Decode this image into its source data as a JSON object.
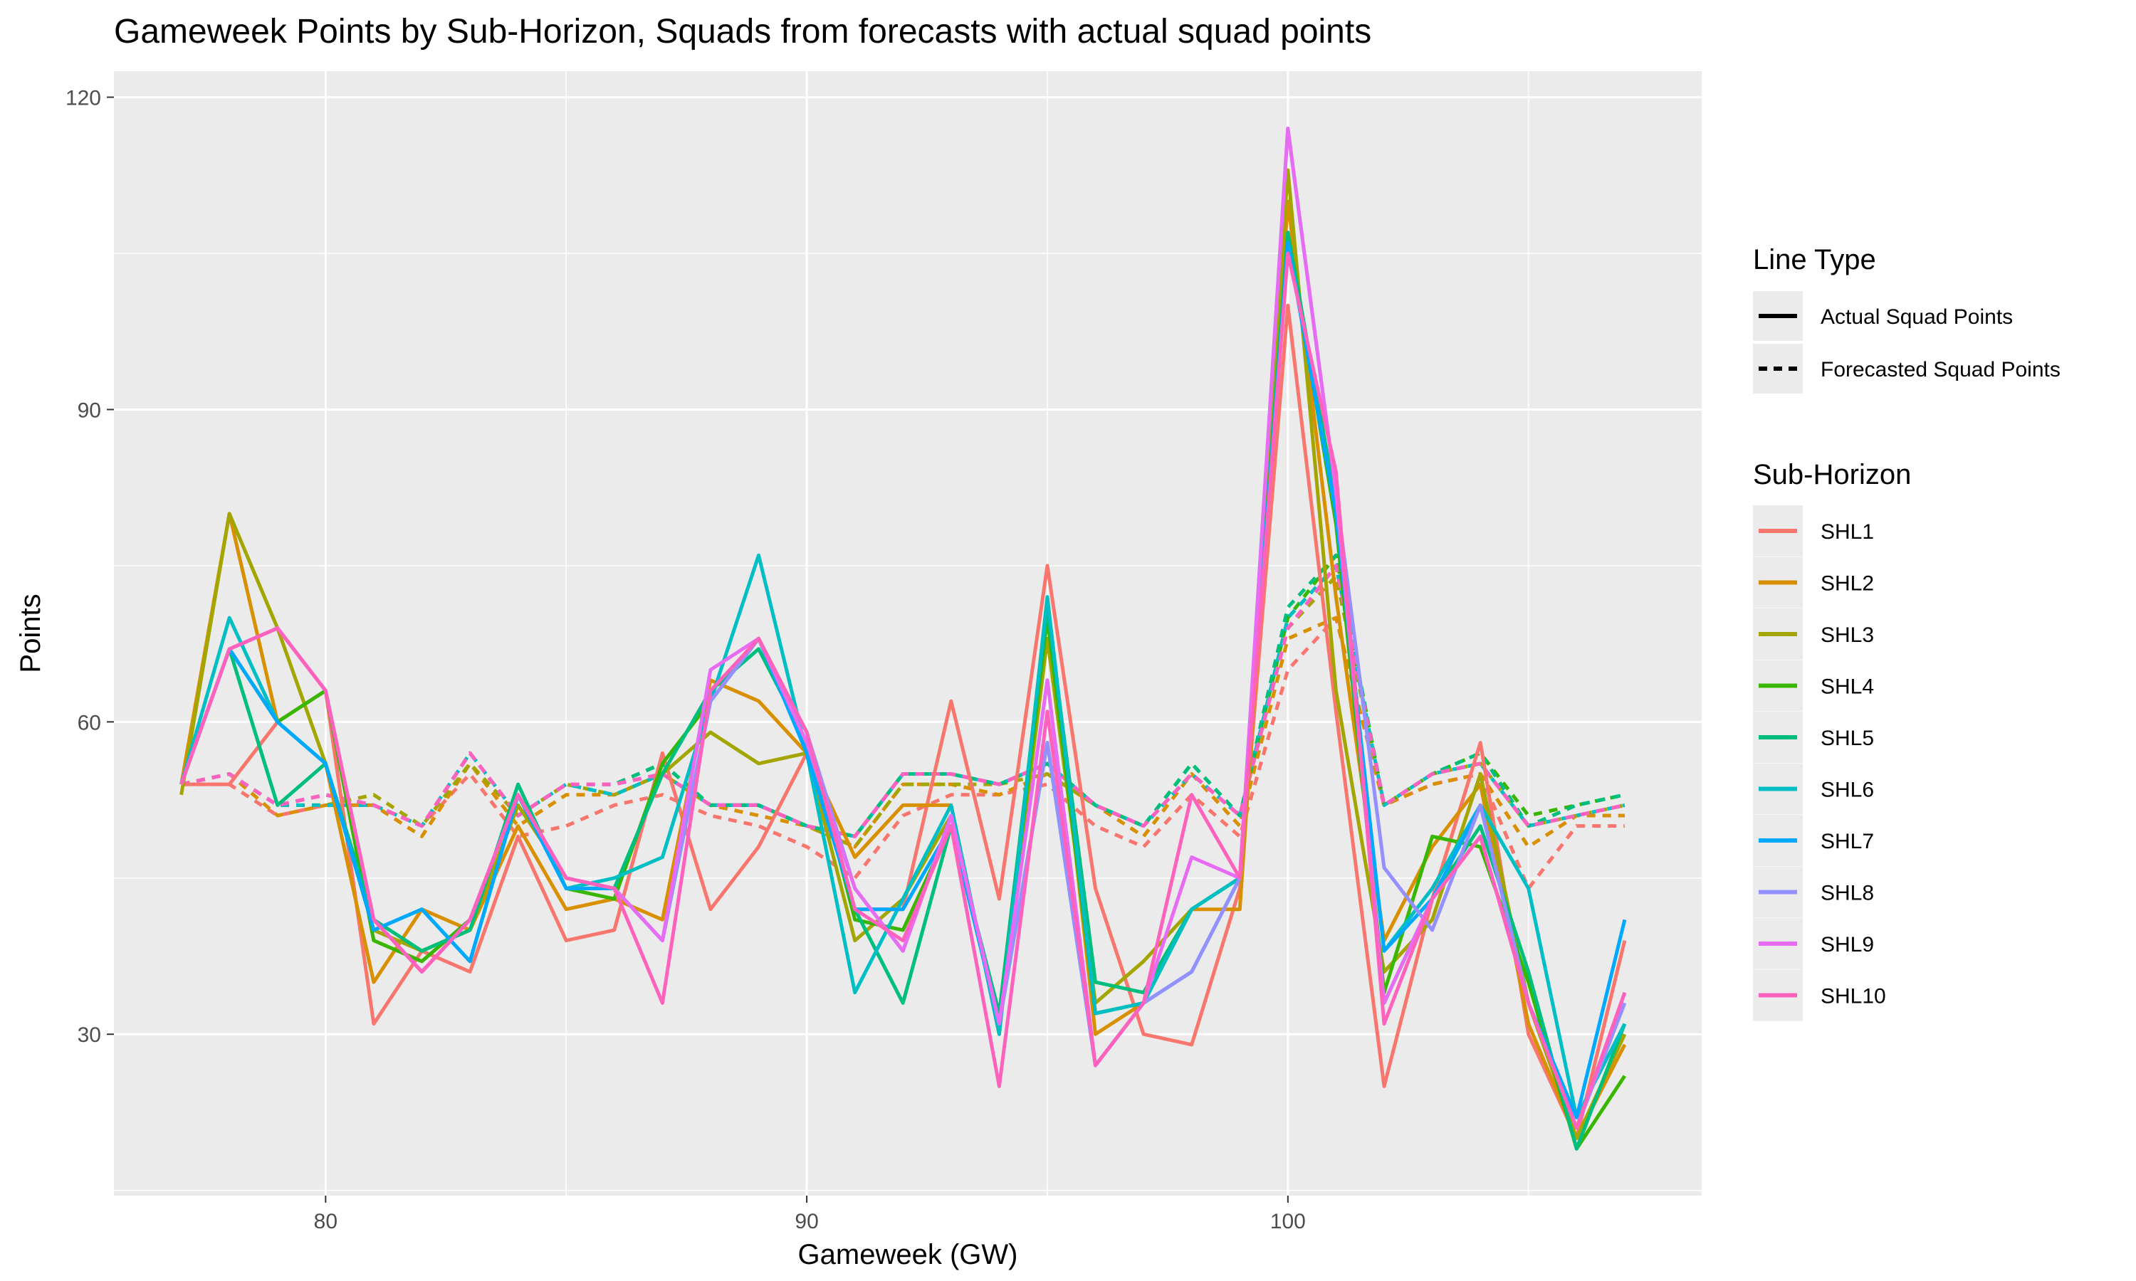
{
  "chart_data": {
    "type": "line",
    "title": "Gameweek Points by Sub-Horizon, Squads from forecasts with actual squad points",
    "xlabel": "Gameweek (GW)",
    "ylabel": "Points",
    "xlim": [
      75.6,
      108.6
    ],
    "ylim": [
      14.5,
      122.5
    ],
    "x_ticks": [
      80,
      90,
      100
    ],
    "y_ticks": [
      30,
      60,
      90,
      120
    ],
    "grid": true,
    "legend_position": "right",
    "line_type_legend": {
      "title": "Line Type",
      "entries": [
        {
          "label": "Actual Squad Points",
          "dash": "solid"
        },
        {
          "label": "Forecasted Squad Points",
          "dash": "dashed"
        }
      ]
    },
    "color_legend_title": "Sub-Horizon",
    "x": [
      77,
      78,
      79,
      80,
      81,
      82,
      83,
      84,
      85,
      86,
      87,
      88,
      89,
      90,
      91,
      92,
      93,
      94,
      95,
      96,
      97,
      98,
      99,
      100,
      101,
      102,
      103,
      104,
      105,
      106,
      107
    ],
    "series": [
      {
        "name": "SHL1",
        "color": "#F8766D",
        "actual": [
          54,
          54,
          60,
          63,
          31,
          38,
          36,
          49,
          39,
          40,
          57,
          42,
          48,
          57,
          42,
          42,
          62,
          43,
          75,
          44,
          30,
          29,
          44,
          100,
          61,
          25,
          43,
          58,
          30,
          20,
          39
        ],
        "forecast": [
          54,
          54,
          51,
          52,
          52,
          50,
          55,
          49,
          50,
          52,
          53,
          51,
          50,
          48,
          45,
          51,
          53,
          53,
          54,
          50,
          48,
          53,
          49,
          65,
          70,
          52,
          54,
          55,
          44,
          50,
          50
        ]
      },
      {
        "name": "SHL2",
        "color": "#D89000",
        "actual": [
          54,
          80,
          60,
          56,
          35,
          42,
          40,
          50,
          42,
          43,
          41,
          64,
          62,
          57,
          47,
          52,
          52,
          30,
          72,
          30,
          33,
          42,
          42,
          110,
          72,
          39,
          48,
          54,
          31,
          20,
          29
        ],
        "forecast": [
          54,
          55,
          51,
          52,
          52,
          49,
          56,
          50,
          53,
          53,
          55,
          52,
          51,
          50,
          48,
          54,
          54,
          53,
          55,
          52,
          49,
          55,
          50,
          68,
          70,
          52,
          54,
          55,
          48,
          51,
          51
        ]
      },
      {
        "name": "SHL3",
        "color": "#A3A500",
        "actual": [
          53,
          80,
          69,
          56,
          40,
          38,
          40,
          52,
          45,
          44,
          55,
          59,
          56,
          57,
          39,
          43,
          51,
          31,
          68,
          33,
          37,
          42,
          45,
          113,
          63,
          36,
          41,
          55,
          33,
          20,
          30
        ],
        "forecast": [
          54,
          55,
          52,
          52,
          53,
          50,
          56,
          51,
          54,
          53,
          55,
          52,
          52,
          50,
          48,
          54,
          54,
          54,
          55,
          52,
          50,
          55,
          51,
          69,
          74,
          52,
          55,
          56,
          50,
          51,
          52
        ]
      },
      {
        "name": "SHL4",
        "color": "#39B600",
        "actual": [
          54,
          67,
          60,
          63,
          39,
          37,
          41,
          53,
          44,
          43,
          56,
          62,
          68,
          59,
          41,
          40,
          50,
          31,
          70,
          32,
          33,
          42,
          45,
          107,
          79,
          34,
          49,
          48,
          35,
          19,
          26
        ],
        "forecast": [
          54,
          55,
          52,
          53,
          52,
          50,
          57,
          51,
          54,
          54,
          56,
          52,
          52,
          50,
          49,
          55,
          55,
          54,
          56,
          52,
          50,
          56,
          51,
          70,
          76,
          52,
          55,
          57,
          51,
          52,
          53
        ]
      },
      {
        "name": "SHL5",
        "color": "#00BF7D",
        "actual": [
          54,
          67,
          52,
          56,
          41,
          38,
          40,
          54,
          44,
          44,
          55,
          63,
          67,
          58,
          42,
          33,
          50,
          32,
          71,
          35,
          34,
          42,
          45,
          107,
          81,
          33,
          43,
          50,
          36,
          19,
          31
        ],
        "forecast": [
          54,
          55,
          52,
          53,
          52,
          50,
          57,
          51,
          54,
          54,
          56,
          52,
          52,
          50,
          49,
          55,
          55,
          54,
          56,
          52,
          50,
          56,
          51,
          71,
          76,
          52,
          55,
          57,
          50,
          52,
          53
        ]
      },
      {
        "name": "SHL6",
        "color": "#00BFC4",
        "actual": [
          54,
          70,
          60,
          56,
          40,
          42,
          37,
          53,
          44,
          45,
          47,
          62,
          76,
          57,
          34,
          43,
          52,
          30,
          72,
          32,
          33,
          42,
          45,
          106,
          80,
          38,
          44,
          52,
          44,
          22,
          31
        ],
        "forecast": [
          54,
          55,
          52,
          52,
          52,
          50,
          57,
          51,
          54,
          53,
          55,
          52,
          52,
          50,
          49,
          55,
          55,
          54,
          56,
          52,
          50,
          55,
          51,
          70,
          75,
          52,
          55,
          56,
          50,
          51,
          52
        ]
      },
      {
        "name": "SHL7",
        "color": "#00A9FF",
        "actual": [
          54,
          67,
          60,
          56,
          40,
          42,
          37,
          53,
          44,
          44,
          39,
          62,
          68,
          57,
          42,
          42,
          50,
          31,
          58,
          27,
          33,
          36,
          45,
          106,
          80,
          38,
          43,
          52,
          33,
          22,
          41
        ],
        "forecast": [
          54,
          55,
          52,
          53,
          52,
          50,
          57,
          51,
          54,
          54,
          55,
          52,
          52,
          50,
          49,
          55,
          55,
          54,
          56,
          52,
          50,
          55,
          51,
          69,
          75,
          52,
          55,
          56,
          50,
          51,
          52
        ]
      },
      {
        "name": "SHL8",
        "color": "#9590FF",
        "actual": [
          54,
          67,
          69,
          63,
          41,
          36,
          41,
          53,
          45,
          44,
          39,
          62,
          68,
          59,
          44,
          38,
          51,
          31,
          58,
          27,
          33,
          36,
          45,
          117,
          82,
          46,
          40,
          52,
          33,
          21,
          33
        ],
        "forecast": [
          54,
          55,
          52,
          53,
          52,
          50,
          57,
          51,
          54,
          54,
          55,
          52,
          52,
          50,
          49,
          55,
          55,
          54,
          56,
          52,
          50,
          55,
          51,
          69,
          75,
          52,
          55,
          56,
          50,
          51,
          52
        ]
      },
      {
        "name": "SHL9",
        "color": "#E76BF3",
        "actual": [
          54,
          67,
          69,
          63,
          41,
          36,
          41,
          53,
          45,
          44,
          39,
          65,
          68,
          58,
          44,
          38,
          51,
          31,
          64,
          27,
          33,
          47,
          45,
          117,
          82,
          33,
          43,
          49,
          33,
          21,
          34
        ],
        "forecast": [
          54,
          55,
          52,
          53,
          52,
          50,
          57,
          51,
          54,
          54,
          55,
          52,
          52,
          50,
          49,
          55,
          55,
          54,
          56,
          52,
          50,
          55,
          51,
          69,
          75,
          52,
          55,
          56,
          50,
          51,
          52
        ]
      },
      {
        "name": "SHL10",
        "color": "#FF62BC",
        "actual": [
          54,
          67,
          69,
          63,
          41,
          36,
          41,
          53,
          45,
          44,
          33,
          63,
          68,
          59,
          42,
          39,
          50,
          25,
          61,
          27,
          33,
          53,
          45,
          105,
          84,
          31,
          43,
          49,
          33,
          21,
          34
        ],
        "forecast": [
          54,
          55,
          52,
          53,
          52,
          50,
          57,
          51,
          54,
          54,
          55,
          52,
          52,
          50,
          49,
          55,
          55,
          54,
          56,
          52,
          50,
          55,
          51,
          69,
          75,
          52,
          55,
          56,
          50,
          51,
          52
        ]
      }
    ]
  }
}
